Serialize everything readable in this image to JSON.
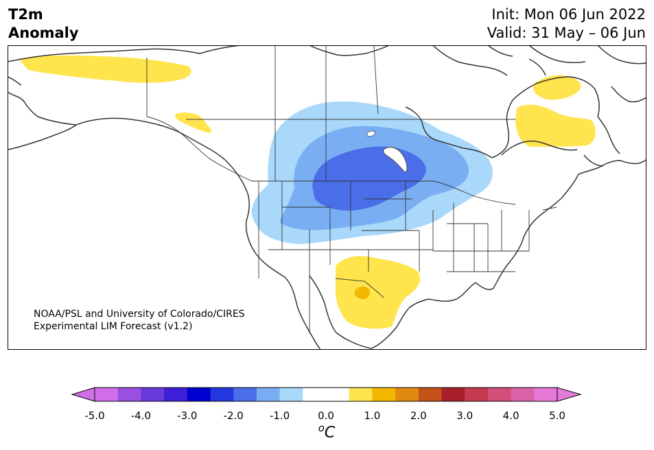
{
  "title": {
    "left_line1": "T2m",
    "left_line2": "Anomaly",
    "init": "Init: Mon 06 Jun 2022",
    "valid": "Valid: 31 May – 06 Jun"
  },
  "credit": {
    "line1": "NOAA/PSL and University of Colorado/CIRES",
    "line2": "Experimental LIM Forecast (v1.2)"
  },
  "colorbar": {
    "tick_labels": [
      "-5.0",
      "-4.0",
      "-3.0",
      "-2.0",
      "-1.0",
      "0.0",
      "1.0",
      "2.0",
      "3.0",
      "4.0",
      "5.0"
    ],
    "unit_sup": "o",
    "unit": "C",
    "colors": [
      "#d16fea",
      "#9a4fe0",
      "#6a39dc",
      "#3e1fd6",
      "#0000d0",
      "#2238de",
      "#4a6ee8",
      "#7aaef2",
      "#a9d8fb",
      "#ffffff",
      "#ffffff",
      "#ffe44e",
      "#f2b800",
      "#e08a10",
      "#c5521a",
      "#a8202a",
      "#c53a4e",
      "#d2507a",
      "#db64a8",
      "#e678d8"
    ],
    "under_color": "#cf6fe8",
    "over_color": "#e47ad9"
  },
  "anomaly_colors": {
    "cool_1": "#a9d8fb",
    "cool_2": "#7aaef2",
    "cool_3": "#4a6ee8",
    "warm_1": "#ffe44e",
    "warm_2": "#f2b800"
  }
}
